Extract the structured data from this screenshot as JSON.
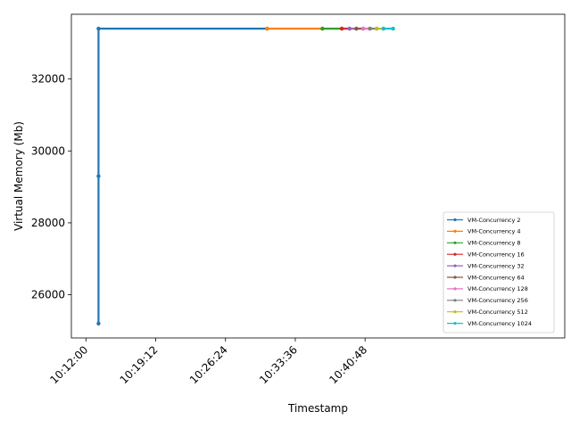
{
  "chart_data": {
    "type": "line",
    "title": "",
    "xlabel": "Timestamp",
    "ylabel": "Virtual Memory (Mb)",
    "x_ticks": [
      "10:12:00",
      "10:19:12",
      "10:26:24",
      "10:33:36",
      "10:40:48"
    ],
    "y_ticks": [
      "26000",
      "28000",
      "30000",
      "32000"
    ],
    "xlim_seconds": [
      -90,
      2964
    ],
    "ylim": [
      24800,
      33800
    ],
    "grid": false,
    "legend_placement": "lower-right",
    "colors": {
      "VM-Concurrency 2": "#1f77b4",
      "VM-Concurrency 4": "#ff7f0e",
      "VM-Concurrency 8": "#2ca02c",
      "VM-Concurrency 16": "#d62728",
      "VM-Concurrency 32": "#9467bd",
      "VM-Concurrency 64": "#8c564b",
      "VM-Concurrency 128": "#e377c2",
      "VM-Concurrency 256": "#7f7f7f",
      "VM-Concurrency 512": "#bcbd22",
      "VM-Concurrency 1024": "#17becf"
    },
    "series": [
      {
        "name": "VM-Concurrency 2",
        "x": [
          "10:13:18",
          "10:13:18",
          "10:13:18",
          "10:30:42"
        ],
        "values": [
          25200,
          29300,
          33400,
          33400
        ]
      },
      {
        "name": "VM-Concurrency 4",
        "x": [
          "10:30:42",
          "10:36:24"
        ],
        "values": [
          33400,
          33400
        ]
      },
      {
        "name": "VM-Concurrency 8",
        "x": [
          "10:36:24",
          "10:38:24"
        ],
        "values": [
          33400,
          33400
        ]
      },
      {
        "name": "VM-Concurrency 16",
        "x": [
          "10:38:24",
          "10:39:12"
        ],
        "values": [
          33400,
          33400
        ]
      },
      {
        "name": "VM-Concurrency 32",
        "x": [
          "10:39:12",
          "10:39:54"
        ],
        "values": [
          33400,
          33400
        ]
      },
      {
        "name": "VM-Concurrency 64",
        "x": [
          "10:39:54",
          "10:40:36"
        ],
        "values": [
          33400,
          33400
        ]
      },
      {
        "name": "VM-Concurrency 128",
        "x": [
          "10:40:36",
          "10:41:18"
        ],
        "values": [
          33400,
          33400
        ]
      },
      {
        "name": "VM-Concurrency 256",
        "x": [
          "10:41:18",
          "10:42:00"
        ],
        "values": [
          33400,
          33400
        ]
      },
      {
        "name": "VM-Concurrency 512",
        "x": [
          "10:42:00",
          "10:42:42"
        ],
        "values": [
          33400,
          33400
        ]
      },
      {
        "name": "VM-Concurrency 1024",
        "x": [
          "10:42:42",
          "10:43:42"
        ],
        "values": [
          33400,
          33400
        ]
      }
    ]
  }
}
